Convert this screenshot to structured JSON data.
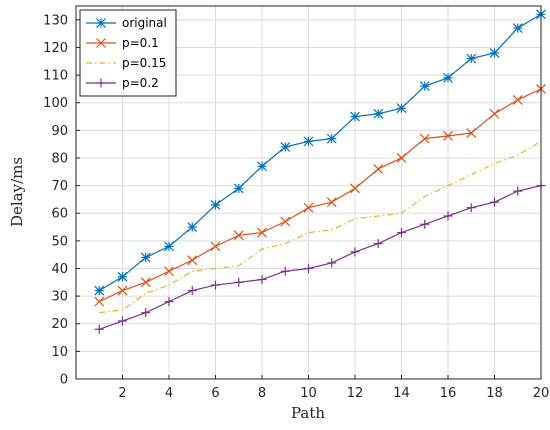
{
  "chart_data": {
    "type": "line",
    "xlabel": "Path",
    "ylabel": "Delay/ms",
    "xlim": [
      0,
      20
    ],
    "ylim": [
      0,
      135
    ],
    "x_ticks": [
      2,
      4,
      6,
      8,
      10,
      12,
      14,
      16,
      18,
      20
    ],
    "y_ticks": [
      0,
      10,
      20,
      30,
      40,
      50,
      60,
      70,
      80,
      90,
      100,
      110,
      120,
      130
    ],
    "grid": true,
    "legend_position": "top-left",
    "x": [
      1,
      2,
      3,
      4,
      5,
      6,
      7,
      8,
      9,
      10,
      11,
      12,
      13,
      14,
      15,
      16,
      17,
      18,
      19,
      20
    ],
    "series": [
      {
        "name": "original",
        "color": "#0072BD",
        "marker": "asterisk",
        "dash": "solid",
        "values": [
          32,
          37,
          44,
          48,
          55,
          63,
          69,
          77,
          84,
          86,
          87,
          95,
          96,
          98,
          106,
          109,
          116,
          118,
          127,
          132
        ]
      },
      {
        "name": "p=0.1",
        "color": "#D95319",
        "marker": "x",
        "dash": "solid",
        "values": [
          28,
          32,
          35,
          39,
          43,
          48,
          52,
          53,
          57,
          62,
          64,
          69,
          76,
          80,
          87,
          88,
          89,
          96,
          101,
          105
        ]
      },
      {
        "name": "p=0.15",
        "color": "#EDB120",
        "marker": "none",
        "dash": "dashdot",
        "values": [
          24,
          25,
          31,
          34,
          39,
          40,
          41,
          47,
          49,
          53,
          54,
          58,
          59,
          60,
          66,
          70,
          74,
          78,
          81,
          86
        ]
      },
      {
        "name": "p=0.2",
        "color": "#7E2F8E",
        "marker": "plus",
        "dash": "solid",
        "values": [
          18,
          21,
          24,
          28,
          32,
          34,
          35,
          36,
          39,
          40,
          42,
          46,
          49,
          53,
          56,
          59,
          62,
          64,
          68,
          70
        ]
      }
    ]
  }
}
